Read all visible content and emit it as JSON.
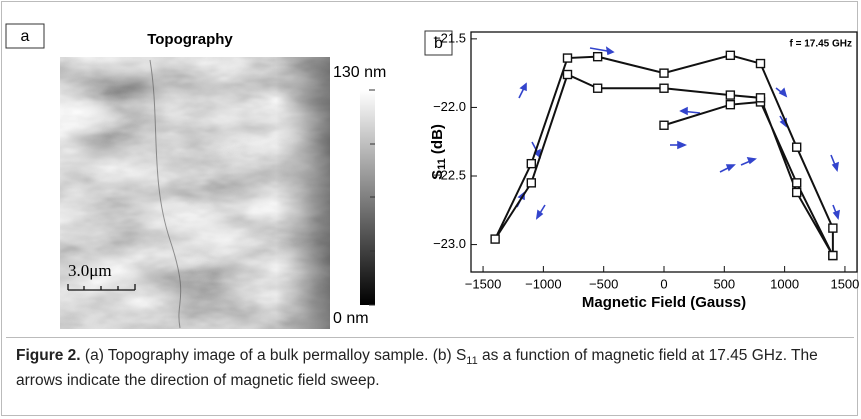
{
  "panel_a": {
    "label": "a",
    "title": "Topography",
    "colorbar_max": "130 nm",
    "colorbar_min": "0 nm",
    "scale_bar": "3.0μm"
  },
  "chart_data": {
    "type": "line",
    "panel_label": "b",
    "x_label": "Magnetic Field (Gauss)",
    "y_label": {
      "main": "S",
      "sub": "11",
      "unit": " (dB)"
    },
    "annotation": "f = 17.45 GHz",
    "xlim": [
      -1600,
      1600
    ],
    "xticks": [
      {
        "value": -1500,
        "label": "−1500"
      },
      {
        "value": -1000,
        "label": "−1000"
      },
      {
        "value": -500,
        "label": "−500"
      },
      0,
      500,
      1000,
      1500
    ],
    "ylim": [
      -23.2,
      -21.45
    ],
    "yticks": [
      {
        "value": -21.5,
        "label": "−21.5"
      },
      {
        "value": -22.0,
        "label": "−22.0"
      },
      {
        "value": -22.5,
        "label": "−22.5"
      },
      {
        "value": -23.0,
        "label": "−23.0"
      }
    ],
    "color": "#111111",
    "x": [
      0,
      550,
      800,
      1100,
      1400,
      1400,
      1100,
      800,
      550,
      0,
      -550,
      -800,
      -1100,
      -1400,
      -1100,
      -800,
      -550,
      0,
      550,
      800,
      1100,
      1400
    ],
    "values": [
      -22.13,
      -21.98,
      -21.96,
      -22.55,
      -23.08,
      -22.88,
      -22.29,
      -21.68,
      -21.62,
      -21.75,
      -21.63,
      -21.64,
      -22.41,
      -22.96,
      -22.55,
      -21.76,
      -21.86,
      -21.86,
      -21.91,
      -21.93,
      -22.62,
      -23.08
    ]
  },
  "caption": {
    "label": "Figure 2.",
    "text_1": "(a) Topography image of a bulk permalloy sample. (b) S",
    "sub": "11",
    "text_2": " as a function of magnetic field at 17.45 GHz. The arrows indicate the direction of magnetic field sweep."
  }
}
